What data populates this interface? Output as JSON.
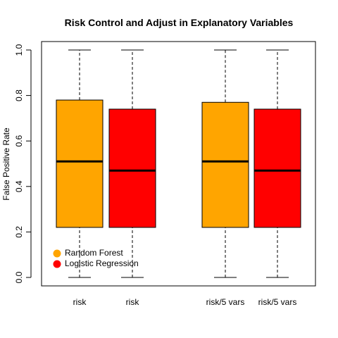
{
  "chart_data": {
    "type": "boxplot",
    "title": "Risk Control and Adjust in Explanatory Variables",
    "xlabel": "",
    "ylabel": "False Positive Rate",
    "ylim": [
      0,
      1
    ],
    "yticks": [
      "0.0",
      "0.2",
      "0.4",
      "0.6",
      "0.8",
      "1.0"
    ],
    "categories": [
      "risk",
      "risk",
      "risk/5 vars",
      "risk/5 vars"
    ],
    "boxes": [
      {
        "label": "risk",
        "series": "Random Forest",
        "min": 0.0,
        "q1": 0.22,
        "median": 0.51,
        "q3": 0.78,
        "max": 1.0
      },
      {
        "label": "risk",
        "series": "Logistic Regression",
        "min": 0.0,
        "q1": 0.22,
        "median": 0.47,
        "q3": 0.74,
        "max": 1.0
      },
      {
        "label": "risk/5 vars",
        "series": "Random Forest",
        "min": 0.0,
        "q1": 0.22,
        "median": 0.51,
        "q3": 0.77,
        "max": 1.0
      },
      {
        "label": "risk/5 vars",
        "series": "Logistic Regression",
        "min": 0.0,
        "q1": 0.22,
        "median": 0.47,
        "q3": 0.74,
        "max": 1.0
      }
    ],
    "legend": {
      "placement": "bottom-left",
      "items": [
        {
          "name": "Random Forest",
          "color": "#FFA500"
        },
        {
          "name": "Logistic Regression",
          "color": "#FF0000"
        }
      ]
    }
  }
}
